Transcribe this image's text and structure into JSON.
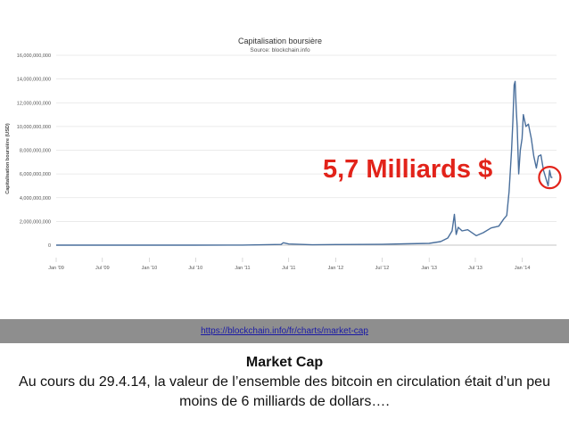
{
  "chart_data": {
    "type": "line",
    "title": "Capitalisation boursière",
    "subtitle": "Source: blockchain.info",
    "ylabel": "Capitalisation boursière (USD)",
    "xlabel": "",
    "ylim": [
      0,
      16000000000
    ],
    "yticks": [
      {
        "value": 0,
        "label": "0"
      },
      {
        "value": 2000000000,
        "label": "2,000,000,000"
      },
      {
        "value": 4000000000,
        "label": "4,000,000,000"
      },
      {
        "value": 6000000000,
        "label": "6,000,000,000"
      },
      {
        "value": 8000000000,
        "label": "8,000,000,000"
      },
      {
        "value": 10000000000,
        "label": "10,000,000,000"
      },
      {
        "value": 12000000000,
        "label": "12,000,000,000"
      },
      {
        "value": 14000000000,
        "label": "14,000,000,000"
      },
      {
        "value": 16000000000,
        "label": "16,000,000,000"
      }
    ],
    "xrange": [
      "2009-01-01",
      "2014-05-15"
    ],
    "xticks": [
      {
        "date": "2009-01-01",
        "label": "Jan '09"
      },
      {
        "date": "2009-07-01",
        "label": "Jul '09"
      },
      {
        "date": "2010-01-01",
        "label": "Jan '10"
      },
      {
        "date": "2010-07-01",
        "label": "Jul '10"
      },
      {
        "date": "2011-01-01",
        "label": "Jan '11"
      },
      {
        "date": "2011-07-01",
        "label": "Jul '11"
      },
      {
        "date": "2012-01-01",
        "label": "Jan '12"
      },
      {
        "date": "2012-07-01",
        "label": "Jul '12"
      },
      {
        "date": "2013-01-01",
        "label": "Jan '13"
      },
      {
        "date": "2013-07-01",
        "label": "Jul '13"
      },
      {
        "date": "2014-01-01",
        "label": "Jan '14"
      }
    ],
    "grid": true,
    "series": [
      {
        "color": "#4a6f9c",
        "points": [
          {
            "x": "2009-01-01",
            "y": 0
          },
          {
            "x": "2010-07-01",
            "y": 0
          },
          {
            "x": "2011-01-01",
            "y": 5000000
          },
          {
            "x": "2011-06-01",
            "y": 60000000
          },
          {
            "x": "2011-06-10",
            "y": 200000000
          },
          {
            "x": "2011-07-01",
            "y": 100000000
          },
          {
            "x": "2011-10-01",
            "y": 30000000
          },
          {
            "x": "2012-01-01",
            "y": 50000000
          },
          {
            "x": "2012-07-01",
            "y": 70000000
          },
          {
            "x": "2012-10-01",
            "y": 110000000
          },
          {
            "x": "2013-01-01",
            "y": 150000000
          },
          {
            "x": "2013-02-15",
            "y": 300000000
          },
          {
            "x": "2013-03-15",
            "y": 600000000
          },
          {
            "x": "2013-04-01",
            "y": 1200000000
          },
          {
            "x": "2013-04-10",
            "y": 2600000000
          },
          {
            "x": "2013-04-17",
            "y": 900000000
          },
          {
            "x": "2013-04-25",
            "y": 1500000000
          },
          {
            "x": "2013-05-10",
            "y": 1200000000
          },
          {
            "x": "2013-06-01",
            "y": 1300000000
          },
          {
            "x": "2013-07-05",
            "y": 800000000
          },
          {
            "x": "2013-08-01",
            "y": 1050000000
          },
          {
            "x": "2013-09-01",
            "y": 1450000000
          },
          {
            "x": "2013-10-01",
            "y": 1600000000
          },
          {
            "x": "2013-10-20",
            "y": 2200000000
          },
          {
            "x": "2013-11-01",
            "y": 2500000000
          },
          {
            "x": "2013-11-10",
            "y": 4500000000
          },
          {
            "x": "2013-11-20",
            "y": 8000000000
          },
          {
            "x": "2013-11-25",
            "y": 10500000000
          },
          {
            "x": "2013-11-30",
            "y": 13500000000
          },
          {
            "x": "2013-12-04",
            "y": 13800000000
          },
          {
            "x": "2013-12-08",
            "y": 11500000000
          },
          {
            "x": "2013-12-12",
            "y": 10000000000
          },
          {
            "x": "2013-12-18",
            "y": 6000000000
          },
          {
            "x": "2013-12-24",
            "y": 8000000000
          },
          {
            "x": "2013-12-31",
            "y": 9000000000
          },
          {
            "x": "2014-01-05",
            "y": 11000000000
          },
          {
            "x": "2014-01-15",
            "y": 10000000000
          },
          {
            "x": "2014-01-25",
            "y": 10200000000
          },
          {
            "x": "2014-02-05",
            "y": 9000000000
          },
          {
            "x": "2014-02-15",
            "y": 7500000000
          },
          {
            "x": "2014-02-25",
            "y": 6500000000
          },
          {
            "x": "2014-03-05",
            "y": 7500000000
          },
          {
            "x": "2014-03-15",
            "y": 7600000000
          },
          {
            "x": "2014-03-25",
            "y": 6300000000
          },
          {
            "x": "2014-04-05",
            "y": 5500000000
          },
          {
            "x": "2014-04-12",
            "y": 5000000000
          },
          {
            "x": "2014-04-18",
            "y": 6300000000
          },
          {
            "x": "2014-04-24",
            "y": 5700000000
          },
          {
            "x": "2014-04-29",
            "y": 5700000000
          }
        ]
      }
    ],
    "annotation": "5,7 Milliards $",
    "highlight": {
      "x": "2014-04-29",
      "y": 5700000000
    }
  },
  "source": {
    "link": "https://blockchain.info/fr/charts/market-cap"
  },
  "caption": {
    "title": "Market Cap",
    "text": "Au cours du 29.4.14, la valeur de l’ensemble des bitcoin en circulation était d’un peu moins de 6 milliards de dollars…."
  },
  "colors": {
    "line": "#4a6f9c",
    "annotation": "#e2231a",
    "source_bar": "#8e8e8e",
    "link": "#1a1aa6"
  }
}
